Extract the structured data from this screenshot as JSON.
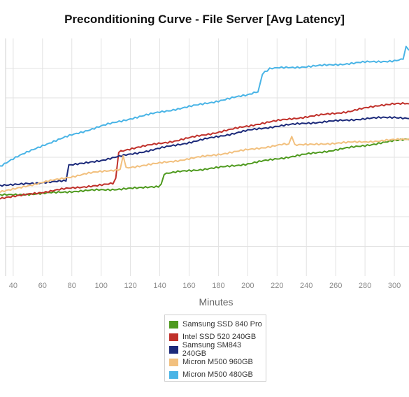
{
  "chart_data": {
    "type": "line",
    "title": "Preconditioning Curve - File Server [Avg Latency]",
    "xlabel": "Minutes",
    "ylabel": "",
    "x_ticks": [
      40,
      60,
      80,
      100,
      120,
      140,
      160,
      180,
      200,
      220,
      240,
      260,
      280,
      300
    ],
    "xlim": [
      31,
      310
    ],
    "ylim": [
      0,
      8
    ],
    "y_gridlines": [
      1,
      2,
      3,
      4,
      5,
      6,
      7
    ],
    "grid": true,
    "legend_position": "bottom-center",
    "series": [
      {
        "name": "Samsung SSD 840 Pro",
        "color": "#4e9a1e",
        "points": [
          [
            31,
            2.72
          ],
          [
            60,
            2.78
          ],
          [
            80,
            2.85
          ],
          [
            100,
            2.9
          ],
          [
            120,
            2.95
          ],
          [
            139,
            3.0
          ],
          [
            141,
            3.1
          ],
          [
            143,
            3.45
          ],
          [
            160,
            3.55
          ],
          [
            180,
            3.65
          ],
          [
            200,
            3.78
          ],
          [
            220,
            3.95
          ],
          [
            240,
            4.1
          ],
          [
            260,
            4.25
          ],
          [
            280,
            4.4
          ],
          [
            300,
            4.55
          ],
          [
            310,
            4.6
          ]
        ]
      },
      {
        "name": "Intel SSD 520 240GB",
        "color": "#c0302a",
        "points": [
          [
            31,
            2.6
          ],
          [
            50,
            2.75
          ],
          [
            70,
            2.9
          ],
          [
            90,
            3.02
          ],
          [
            108,
            3.12
          ],
          [
            110,
            3.3
          ],
          [
            112,
            4.2
          ],
          [
            130,
            4.38
          ],
          [
            150,
            4.55
          ],
          [
            170,
            4.75
          ],
          [
            190,
            4.95
          ],
          [
            210,
            5.15
          ],
          [
            230,
            5.3
          ],
          [
            250,
            5.42
          ],
          [
            270,
            5.55
          ],
          [
            290,
            5.75
          ],
          [
            300,
            5.8
          ],
          [
            310,
            5.8
          ]
        ]
      },
      {
        "name": "Samsung SM843 240GB",
        "color": "#1c2a7a",
        "points": [
          [
            31,
            3.05
          ],
          [
            50,
            3.12
          ],
          [
            76,
            3.2
          ],
          [
            78,
            3.75
          ],
          [
            100,
            3.9
          ],
          [
            120,
            4.1
          ],
          [
            140,
            4.3
          ],
          [
            160,
            4.5
          ],
          [
            180,
            4.7
          ],
          [
            200,
            4.9
          ],
          [
            220,
            5.05
          ],
          [
            240,
            5.15
          ],
          [
            260,
            5.22
          ],
          [
            280,
            5.3
          ],
          [
            300,
            5.35
          ],
          [
            310,
            5.3
          ]
        ]
      },
      {
        "name": "Micron M500 960GB",
        "color": "#f2c07e",
        "points": [
          [
            31,
            2.85
          ],
          [
            50,
            3.05
          ],
          [
            70,
            3.25
          ],
          [
            90,
            3.45
          ],
          [
            113,
            3.6
          ],
          [
            115,
            4.05
          ],
          [
            117,
            3.65
          ],
          [
            140,
            3.8
          ],
          [
            160,
            3.95
          ],
          [
            180,
            4.1
          ],
          [
            200,
            4.25
          ],
          [
            220,
            4.4
          ],
          [
            228,
            4.45
          ],
          [
            230,
            4.7
          ],
          [
            232,
            4.4
          ],
          [
            250,
            4.45
          ],
          [
            270,
            4.5
          ],
          [
            290,
            4.55
          ],
          [
            310,
            4.62
          ]
        ]
      },
      {
        "name": "Micron M500 480GB",
        "color": "#49b4e6",
        "points": [
          [
            31,
            3.7
          ],
          [
            40,
            3.95
          ],
          [
            60,
            4.4
          ],
          [
            80,
            4.75
          ],
          [
            100,
            5.05
          ],
          [
            120,
            5.3
          ],
          [
            140,
            5.52
          ],
          [
            160,
            5.7
          ],
          [
            180,
            5.9
          ],
          [
            200,
            6.1
          ],
          [
            207,
            6.2
          ],
          [
            210,
            6.8
          ],
          [
            215,
            7.0
          ],
          [
            220,
            7.0
          ],
          [
            240,
            7.05
          ],
          [
            260,
            7.12
          ],
          [
            280,
            7.2
          ],
          [
            300,
            7.25
          ],
          [
            306,
            7.3
          ],
          [
            308,
            7.7
          ],
          [
            310,
            7.6
          ]
        ]
      }
    ]
  }
}
